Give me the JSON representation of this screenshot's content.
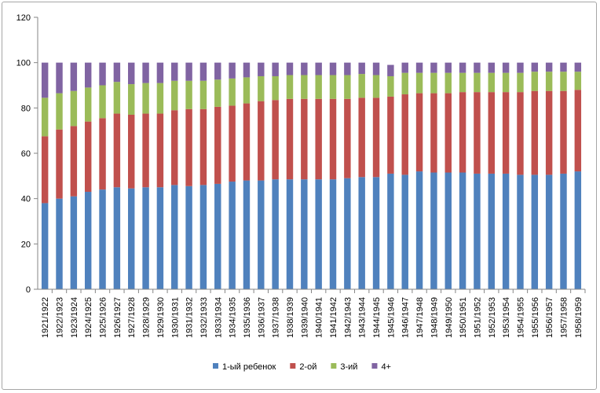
{
  "chart_data": {
    "type": "bar",
    "stacked": true,
    "ylim": [
      0,
      120
    ],
    "yticks": [
      0,
      20,
      40,
      60,
      80,
      100,
      120
    ],
    "grid": false,
    "legend_position": "bottom",
    "categories": [
      "1921/1922",
      "1922/1923",
      "1923/1924",
      "1924/1925",
      "1925/1926",
      "1926/1927",
      "1927/1928",
      "1928/1929",
      "1929/1930",
      "1930/1931",
      "1931/1932",
      "1932/1933",
      "1933/1934",
      "1934/1935",
      "1935/1936",
      "1936/1937",
      "1937/1938",
      "1938/1939",
      "1939/1940",
      "1940/1941",
      "1941/1942",
      "1942/1943",
      "1943/1944",
      "1944/1945",
      "1945/1946",
      "1946/1947",
      "1947/1948",
      "1948/1949",
      "1949/1950",
      "1950/1951",
      "1951/1952",
      "1952/1953",
      "1953/1954",
      "1954/1955",
      "1955/1956",
      "1956/1957",
      "1957/1958",
      "1958/1959"
    ],
    "series": [
      {
        "name": "1-ый ребенок",
        "color": "#4f81bd",
        "values": [
          38,
          40,
          41,
          43,
          44,
          45,
          44.5,
          45,
          45,
          46,
          45.5,
          46,
          46.5,
          47.5,
          48,
          48,
          48.5,
          48.5,
          48.5,
          48.5,
          48.5,
          49,
          49.5,
          49.5,
          51,
          50.5,
          52,
          51.5,
          51.5,
          51.5,
          51,
          51,
          51,
          50.5,
          50.5,
          50.5,
          51,
          52
        ]
      },
      {
        "name": "2-ой",
        "color": "#c0504d",
        "values": [
          29.5,
          30.5,
          31,
          31,
          31.5,
          32.5,
          32.5,
          32.5,
          32.5,
          33,
          34,
          33.5,
          34,
          33.5,
          34,
          35,
          35,
          35.5,
          35.5,
          35.5,
          35.5,
          35,
          35,
          35,
          34,
          35.5,
          34.5,
          35,
          35,
          35.5,
          36,
          36,
          36,
          36.5,
          37,
          37,
          36.5,
          36
        ]
      },
      {
        "name": "3-ий",
        "color": "#9bbb59",
        "values": [
          17,
          16,
          15.5,
          15,
          14.5,
          14,
          13.5,
          13.5,
          13.5,
          13,
          12.5,
          12.5,
          12,
          12,
          11.5,
          11,
          10.5,
          10.5,
          10.5,
          10.5,
          10.5,
          10.5,
          10.5,
          10,
          9,
          9.5,
          9,
          9,
          9,
          8.5,
          8.5,
          8.5,
          8.5,
          8.5,
          8.5,
          8.5,
          8.5,
          8
        ]
      },
      {
        "name": "4+",
        "color": "#8064a2",
        "values": [
          15.5,
          13.5,
          12.5,
          11,
          10,
          8.5,
          9.5,
          9,
          9,
          8,
          8,
          8,
          7.5,
          7,
          6.5,
          6,
          6,
          5.5,
          5.5,
          5.5,
          5.5,
          5.5,
          5,
          5.5,
          5,
          4.5,
          4.5,
          4.5,
          4.5,
          4.5,
          4.5,
          4.5,
          4.5,
          4.5,
          4,
          4,
          4,
          4
        ]
      }
    ]
  }
}
